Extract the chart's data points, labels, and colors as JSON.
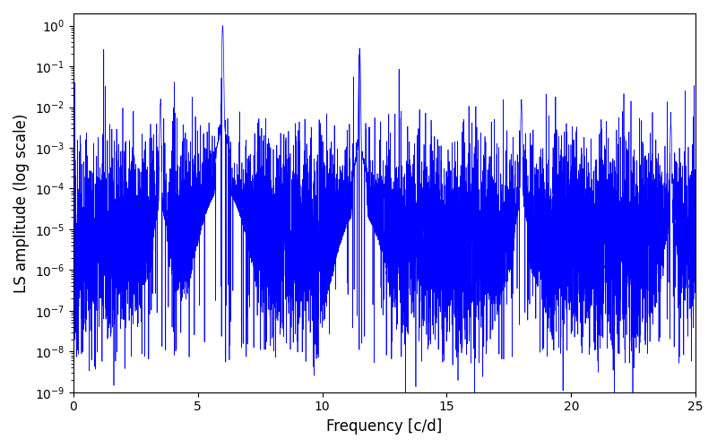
{
  "line_color": "#0000ff",
  "xlabel": "Frequency [c/d]",
  "ylabel": "LS amplitude (log scale)",
  "xlim": [
    0,
    25
  ],
  "ylim_log": [
    -9,
    0.3
  ],
  "background_color": "#ffffff",
  "figsize": [
    8.0,
    5.0
  ],
  "dpi": 100,
  "peak_freqs": [
    3.5,
    6.0,
    11.5,
    18.0,
    24.0
  ],
  "peak_amps": [
    0.012,
    1.0,
    0.28,
    0.014,
    0.004
  ],
  "noise_floor": 5e-06,
  "seed": 12345,
  "n_points": 8000
}
